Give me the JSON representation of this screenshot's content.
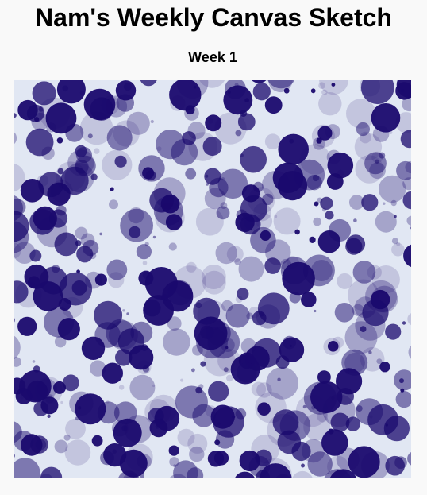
{
  "page": {
    "title": "Nam's Weekly Canvas Sketch",
    "subtitle": "Week 1"
  },
  "canvas": {
    "background_color": "#e1e7f3",
    "circle_color": "#1a0a6e",
    "opacity_levels": [
      0.15,
      0.3,
      0.5,
      0.75,
      0.95
    ]
  }
}
